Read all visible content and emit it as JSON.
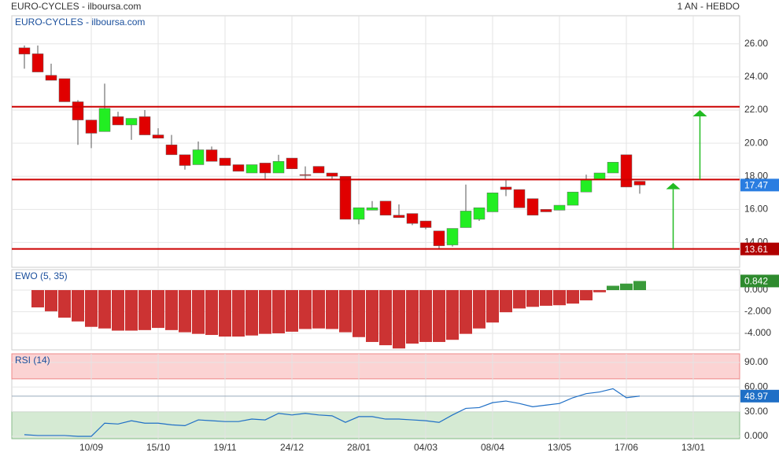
{
  "chart_data": [
    {
      "type": "candlestick",
      "title": "EURO-CYCLES - ilboursa.com",
      "subtitle": "1 AN - HEBDO",
      "categories": [
        null,
        null,
        null,
        null,
        null,
        "10/09",
        null,
        null,
        null,
        null,
        "15/10",
        null,
        null,
        null,
        null,
        "19/11",
        null,
        null,
        null,
        null,
        "24/12",
        null,
        null,
        null,
        null,
        "28/01",
        null,
        null,
        null,
        null,
        "04/03",
        null,
        null,
        null,
        null,
        "08/04",
        null,
        null,
        null,
        null,
        "13/05",
        null,
        null,
        null,
        null,
        "17/06",
        null,
        null,
        null,
        null,
        "13/01"
      ],
      "open": [
        25.76,
        25.4,
        24.1,
        23.9,
        22.5,
        21.4,
        20.7,
        21.6,
        21.1,
        21.6,
        20.5,
        19.9,
        19.3,
        18.7,
        19.6,
        19.1,
        18.7,
        18.2,
        18.8,
        18.2,
        19.1,
        18.1,
        18.6,
        18.2,
        18.0,
        15.4,
        15.95,
        16.5,
        15.65,
        15.75,
        15.3,
        14.7,
        13.85,
        14.9,
        15.4,
        15.85,
        17.35,
        17.2,
        16.65,
        16.0,
        15.95,
        16.25,
        17.05,
        17.8,
        18.2,
        19.3,
        17.7,
        null,
        null,
        null,
        null
      ],
      "high": [
        25.9,
        25.9,
        24.8,
        23.9,
        22.6,
        21.4,
        23.6,
        21.9,
        21.5,
        22.0,
        20.9,
        20.5,
        19.3,
        20.1,
        19.8,
        19.1,
        18.7,
        18.7,
        18.8,
        19.3,
        19.1,
        18.6,
        18.6,
        18.2,
        18.0,
        16.1,
        16.5,
        16.5,
        16.3,
        15.75,
        15.3,
        14.7,
        14.85,
        17.5,
        16.1,
        17.0,
        17.75,
        17.2,
        16.65,
        16.0,
        16.25,
        17.05,
        18.1,
        18.2,
        18.85,
        19.3,
        17.7,
        null,
        null,
        null,
        null
      ],
      "low": [
        24.5,
        24.3,
        23.8,
        22.5,
        19.9,
        19.7,
        20.7,
        21.1,
        20.2,
        20.5,
        20.3,
        19.3,
        18.4,
        18.7,
        18.9,
        18.65,
        18.3,
        18.2,
        17.85,
        18.2,
        18.45,
        17.85,
        18.2,
        17.85,
        15.4,
        15.1,
        15.95,
        15.65,
        15.5,
        15.05,
        14.8,
        13.6,
        13.75,
        14.9,
        15.3,
        15.85,
        16.8,
        16.1,
        15.65,
        15.85,
        15.95,
        16.25,
        17.05,
        17.8,
        18.2,
        17.35,
        16.95,
        null,
        null,
        null,
        null
      ],
      "close": [
        25.38,
        24.3,
        23.8,
        22.5,
        21.4,
        20.6,
        22.1,
        21.1,
        21.5,
        20.5,
        20.3,
        19.3,
        18.65,
        19.6,
        18.9,
        18.65,
        18.3,
        18.7,
        18.2,
        18.9,
        18.45,
        18.05,
        18.2,
        18.0,
        15.4,
        16.1,
        16.1,
        15.65,
        15.5,
        15.15,
        14.9,
        13.8,
        14.85,
        15.9,
        16.1,
        17.0,
        17.2,
        16.1,
        15.65,
        15.85,
        16.25,
        17.05,
        17.8,
        18.2,
        18.85,
        17.35,
        17.47,
        null,
        null,
        null,
        null
      ],
      "up_color": "#22ee22",
      "down_color": "#e00000",
      "ylim": [
        12.5,
        27.7
      ],
      "yticks": [
        {
          "value": 14,
          "label": "14.00"
        },
        {
          "value": 16,
          "label": "16.00"
        },
        {
          "value": 18,
          "label": "18.00"
        },
        {
          "value": 20,
          "label": "20.00"
        },
        {
          "value": 22,
          "label": "22.00"
        },
        {
          "value": 24,
          "label": "24.00"
        },
        {
          "value": 26,
          "label": "26.00"
        }
      ],
      "levels": [
        22.2,
        17.8,
        13.61
      ],
      "level_color": "#cc0000",
      "arrows": [
        {
          "from": 13.61,
          "to": 17.6
        },
        {
          "from": 17.8,
          "to": 22.0
        }
      ],
      "arrow_color": "#22bb22",
      "last_color": "#2a7de1",
      "grid": true
    },
    {
      "type": "bar",
      "title": "EWO (5, 35)",
      "values": [
        null,
        -1.6,
        -1.96,
        -2.55,
        -2.9,
        -3.4,
        -3.55,
        -3.75,
        -3.75,
        -3.7,
        -3.5,
        -3.7,
        -3.9,
        -4.05,
        -4.15,
        -4.3,
        -4.3,
        -4.2,
        -4.05,
        -4.0,
        -3.85,
        -3.6,
        -3.55,
        -3.6,
        -3.9,
        -4.35,
        -4.8,
        -5.1,
        -5.4,
        -4.95,
        -4.8,
        -4.8,
        -4.6,
        -4.05,
        -3.55,
        -3.0,
        -2.05,
        -1.7,
        -1.55,
        -1.45,
        -1.4,
        -1.25,
        -0.95,
        -0.2,
        0.4,
        0.6,
        0.842,
        null,
        null,
        null,
        null
      ],
      "up_color": "#3a9a3a",
      "down_color": "#cc3333",
      "ylim": [
        -5.53,
        1.89
      ],
      "yticks": [
        {
          "value": 0,
          "label": "0.000"
        },
        {
          "value": -2,
          "label": "-2.000"
        },
        {
          "value": -4,
          "label": "-4.000"
        }
      ]
    },
    {
      "type": "line",
      "title": "RSI (14)",
      "values": [
        2,
        1,
        1,
        1,
        0,
        0,
        16,
        15,
        19,
        16,
        16,
        14,
        13,
        20,
        19,
        18,
        18,
        21,
        20,
        28,
        26,
        28,
        26,
        25,
        17,
        24,
        24,
        21,
        21,
        20,
        19,
        17,
        26,
        34,
        35,
        41,
        43,
        40,
        36,
        38,
        40,
        47,
        52,
        54,
        58,
        47,
        48.97,
        null,
        null,
        null,
        null
      ],
      "color": "#1f6fc6",
      "ylim": [
        -2.9,
        100.5
      ],
      "yticks": [
        {
          "value": 0,
          "label": "0.000"
        },
        {
          "value": 30,
          "label": "30.00"
        },
        {
          "value": 60,
          "label": "60.00"
        },
        {
          "value": 90,
          "label": "90.00"
        }
      ],
      "overbought": 70,
      "oversold": 30,
      "overbought_color": "#fbd3d3",
      "oversold_color": "#d5ead3"
    }
  ]
}
